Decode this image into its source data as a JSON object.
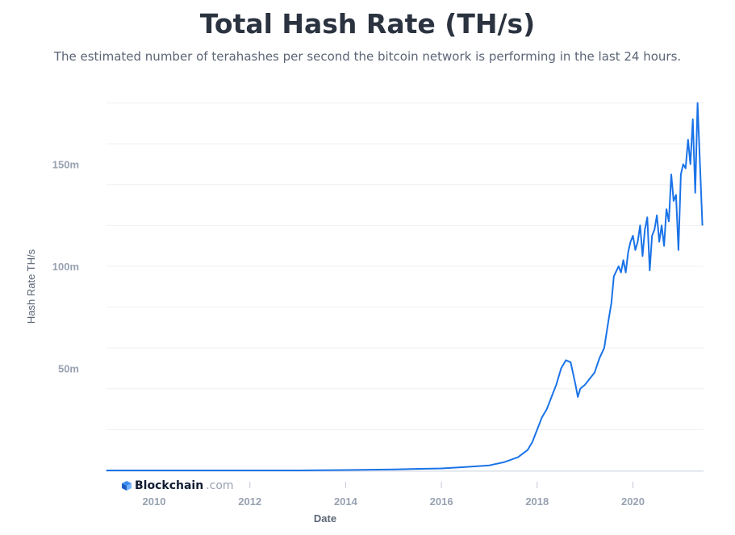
{
  "title": "Total Hash Rate (TH/s)",
  "subtitle": "The estimated number of terahashes per second the bitcoin network is performing in the last 24 hours.",
  "brand": {
    "name": "Blockchain",
    "suffix": ".com",
    "icon": "blockchain-cube-icon"
  },
  "colors": {
    "line": "#1a73e8",
    "grid": "#eef0f4",
    "axis_text": "#98a1b2",
    "title": "#2b3340"
  },
  "chart_data": {
    "type": "line",
    "title": "Total Hash Rate (TH/s)",
    "xlabel": "Date",
    "ylabel": "Hash Rate TH/s",
    "x_ticks": [
      "2010",
      "2012",
      "2014",
      "2016",
      "2018",
      "2020"
    ],
    "y_ticks": [
      "50m",
      "100m",
      "150m"
    ],
    "xlim": [
      2009.0,
      2021.5
    ],
    "ylim": [
      0,
      180
    ],
    "y_unit": "million TH/s",
    "grid": true,
    "series": [
      {
        "x": [
          2009.0,
          2011.0,
          2013.0,
          2014.0,
          2015.0,
          2016.0,
          2016.5,
          2017.0,
          2017.3,
          2017.6,
          2017.8,
          2017.9,
          2018.0,
          2018.1,
          2018.2,
          2018.3,
          2018.4,
          2018.5,
          2018.6,
          2018.7,
          2018.8,
          2018.85,
          2018.9,
          2019.0,
          2019.1,
          2019.2,
          2019.3,
          2019.4,
          2019.5,
          2019.55,
          2019.6,
          2019.7,
          2019.75,
          2019.8,
          2019.85,
          2019.9,
          2019.95,
          2020.0,
          2020.05,
          2020.1,
          2020.15,
          2020.2,
          2020.25,
          2020.3,
          2020.35,
          2020.4,
          2020.45,
          2020.5,
          2020.55,
          2020.6,
          2020.65,
          2020.7,
          2020.75,
          2020.8,
          2020.85,
          2020.9,
          2020.95,
          2021.0,
          2021.05,
          2021.1,
          2021.15,
          2021.2,
          2021.25,
          2021.3,
          2021.35,
          2021.4,
          2021.45
        ],
        "y": [
          0.0,
          0.0,
          0.0,
          0.2,
          0.5,
          1.0,
          1.7,
          2.5,
          4.0,
          6.5,
          10.0,
          14.0,
          20.0,
          26.0,
          30.0,
          36.0,
          42.0,
          50.0,
          54.0,
          53.0,
          42.0,
          36.0,
          40.0,
          42.0,
          45.0,
          48.0,
          55.0,
          60.0,
          75.0,
          82.0,
          95.0,
          100.0,
          97.0,
          103.0,
          97.0,
          107.0,
          112.0,
          115.0,
          108.0,
          112.0,
          120.0,
          105.0,
          118.0,
          124.0,
          98.0,
          115.0,
          118.0,
          125.0,
          112.0,
          120.0,
          110.0,
          128.0,
          122.0,
          145.0,
          132.0,
          135.0,
          108.0,
          145.0,
          150.0,
          148.0,
          162.0,
          150.0,
          172.0,
          136.0,
          180.0,
          150.0,
          120.0
        ]
      }
    ]
  }
}
